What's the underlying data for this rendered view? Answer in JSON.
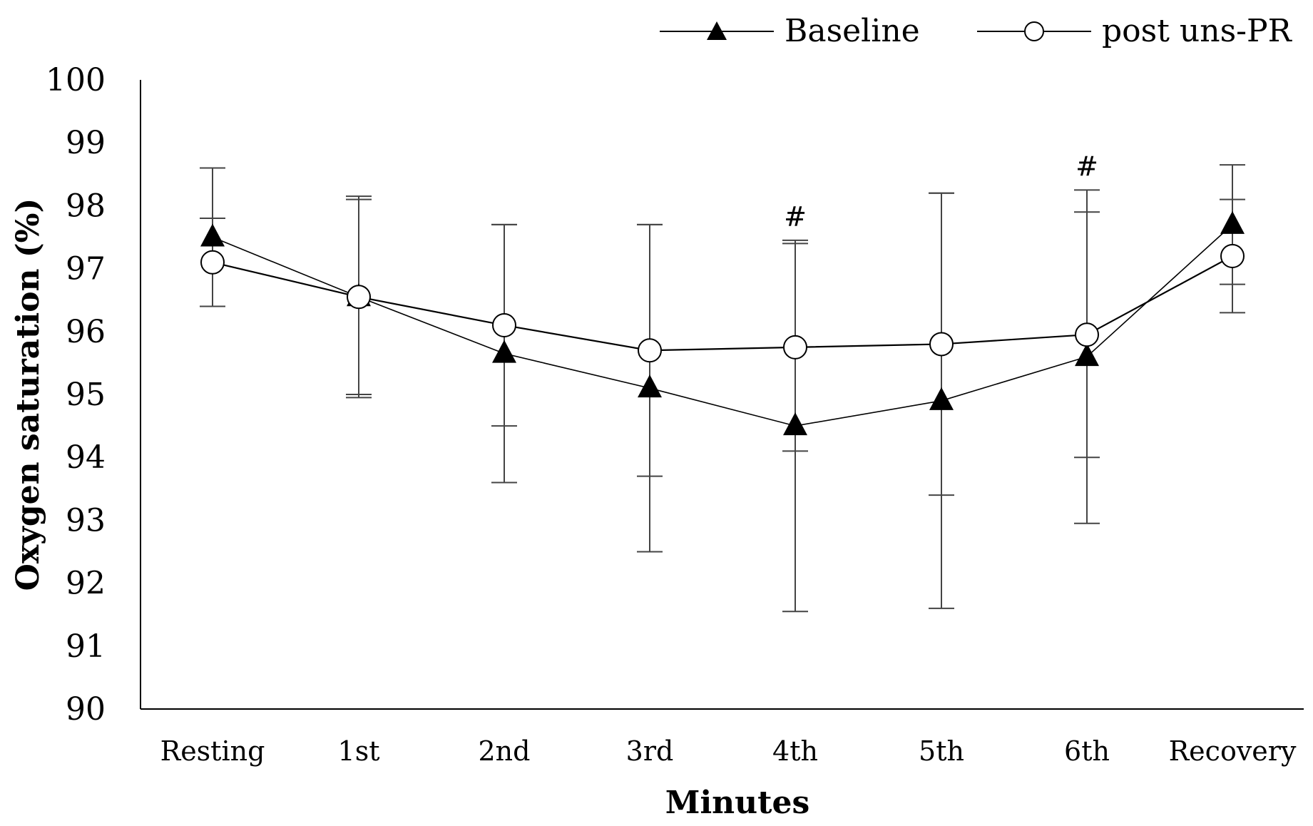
{
  "chart_data": {
    "type": "line",
    "title": "",
    "xlabel": "Minutes",
    "ylabel": "Oxygen saturation (%)",
    "ylim": [
      90,
      100
    ],
    "yticks": [
      90,
      91,
      92,
      93,
      94,
      95,
      96,
      97,
      98,
      99,
      100
    ],
    "categories": [
      "Resting",
      "1st",
      "2nd",
      "3rd",
      "4th",
      "5th",
      "6th",
      "Recovery"
    ],
    "grid": false,
    "legend_position": "top-right",
    "series": [
      {
        "name": "Baseline",
        "marker": "filled-triangle",
        "values": [
          97.5,
          96.55,
          95.65,
          95.1,
          94.5,
          94.9,
          95.6,
          97.7
        ],
        "error": [
          1.1,
          1.6,
          2.05,
          2.6,
          2.95,
          3.3,
          2.65,
          0.95
        ]
      },
      {
        "name": "post uns-PR",
        "marker": "open-circle",
        "values": [
          97.1,
          96.55,
          96.1,
          95.7,
          95.75,
          95.8,
          95.95,
          97.2
        ],
        "error": [
          0.7,
          1.55,
          1.6,
          2.0,
          1.65,
          2.4,
          1.95,
          0.9
        ]
      }
    ],
    "annotations": [
      {
        "category": "4th",
        "text": "#"
      },
      {
        "category": "6th",
        "text": "#"
      }
    ]
  }
}
